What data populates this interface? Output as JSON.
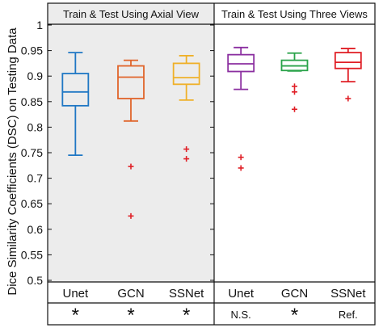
{
  "chart_data": {
    "type": "box",
    "ylabel": "Dice Similarity Coefficients (DSC) on Testing Data",
    "ylim": [
      0.5,
      1.0
    ],
    "yticks": [
      0.5,
      0.55,
      0.6,
      0.65,
      0.7,
      0.75,
      0.8,
      0.85,
      0.9,
      0.95,
      1
    ],
    "ytick_labels": [
      "0.5",
      "0.55",
      "0.6",
      "0.65",
      "0.7",
      "0.75",
      "0.8",
      "0.85",
      "0.9",
      "0.95",
      "1"
    ],
    "panels": [
      {
        "title": "Train & Test Using Axial View",
        "background": "#ececec",
        "boxes": [
          {
            "label": "Unet",
            "significance": "*",
            "color": "#1f77c4",
            "whisker_low": 0.745,
            "q1": 0.842,
            "median": 0.869,
            "q3": 0.905,
            "whisker_high": 0.946,
            "outliers": []
          },
          {
            "label": "GCN",
            "significance": "*",
            "color": "#e0642a",
            "whisker_low": 0.812,
            "q1": 0.856,
            "median": 0.898,
            "q3": 0.92,
            "whisker_high": 0.931,
            "outliers": [
              0.723,
              0.626
            ]
          },
          {
            "label": "SSNet",
            "significance": "*",
            "color": "#efb028",
            "whisker_low": 0.853,
            "q1": 0.884,
            "median": 0.897,
            "q3": 0.925,
            "whisker_high": 0.94,
            "outliers": [
              0.757,
              0.738
            ]
          }
        ]
      },
      {
        "title": "Train & Test Using Three Views",
        "background": "#ffffff",
        "boxes": [
          {
            "label": "Unet",
            "significance": "N.S.",
            "color": "#8b2fa0",
            "whisker_low": 0.874,
            "q1": 0.909,
            "median": 0.924,
            "q3": 0.942,
            "whisker_high": 0.956,
            "outliers": [
              0.741,
              0.72
            ]
          },
          {
            "label": "GCN",
            "significance": "*",
            "color": "#2aa34a",
            "whisker_low": 0.91,
            "q1": 0.911,
            "median": 0.92,
            "q3": 0.931,
            "whisker_high": 0.945,
            "outliers": [
              0.88,
              0.869,
              0.835
            ]
          },
          {
            "label": "SSNet",
            "significance": "Ref.",
            "color": "#e01f26",
            "whisker_low": 0.889,
            "q1": 0.915,
            "median": 0.927,
            "q3": 0.946,
            "whisker_high": 0.954,
            "outliers": [
              0.856
            ]
          }
        ]
      }
    ]
  }
}
